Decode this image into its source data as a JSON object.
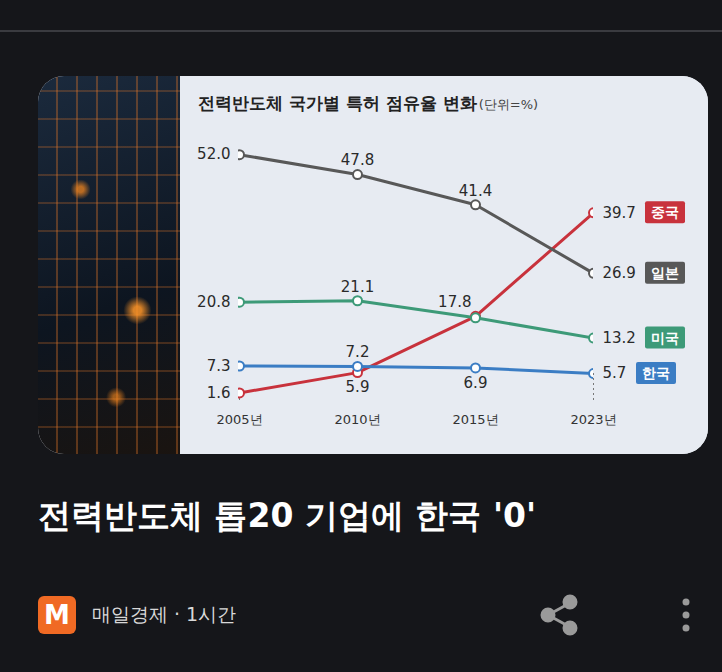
{
  "chart_data": {
    "type": "line",
    "title": "전력반도체 국가별 특허 점유율 변화",
    "subtitle": "(단위=%)",
    "categories": [
      "2005년",
      "2010년",
      "2015년",
      "2023년"
    ],
    "series": [
      {
        "name": "중국",
        "color": "#c8323c",
        "marker": "circle",
        "values": [
          1.6,
          5.9,
          17.8,
          39.7
        ],
        "value_labels": [
          "1.6",
          "5.9",
          "17.8",
          "39.7"
        ]
      },
      {
        "name": "일본",
        "color": "#585858",
        "marker": "circle",
        "values": [
          52.0,
          47.8,
          41.4,
          26.9
        ],
        "value_labels": [
          "52.0",
          "47.8",
          "41.4",
          "26.9"
        ]
      },
      {
        "name": "미국",
        "color": "#3d9a78",
        "marker": "circle",
        "values": [
          20.8,
          21.1,
          17.5,
          13.2
        ],
        "value_labels": [
          "20.8",
          "21.1",
          null,
          "13.2"
        ]
      },
      {
        "name": "한국",
        "color": "#3b7dc4",
        "marker": "circle",
        "values": [
          7.3,
          7.2,
          6.9,
          5.7
        ],
        "value_labels": [
          "7.3",
          "7.2",
          "6.9",
          "5.7"
        ]
      }
    ],
    "ylim": [
      0,
      55
    ],
    "tick_labels": "x",
    "data_labels": true,
    "grid": false
  },
  "headline": "전력반도체 톱20 기업에 한국 '0'",
  "source": {
    "logo": "M",
    "text": "매일경제 · 1시간"
  }
}
